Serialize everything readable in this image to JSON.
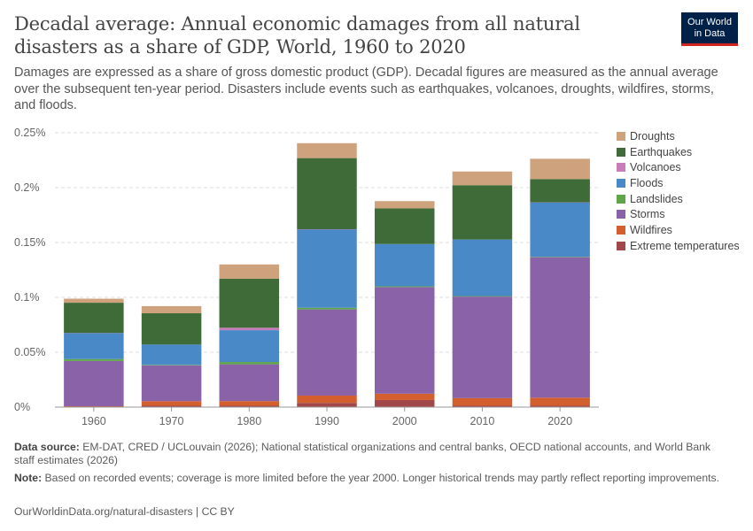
{
  "header": {
    "title": "Decadal average: Annual economic damages from all natural disasters as a share of GDP, World, 1960 to 2020",
    "subtitle": "Damages are expressed as a share of gross domestic product (GDP). Decadal figures are measured as the annual average over the subsequent ten-year period. Disasters include events such as earthquakes, volcanoes, droughts, wildfires, storms, and floods.",
    "logo_line1": "Our World",
    "logo_line2": "in Data"
  },
  "footer": {
    "source_label": "Data source:",
    "source_text": "EM-DAT, CRED / UCLouvain (2026); National statistical organizations and central banks, OECD national accounts, and World Bank staff estimates (2026)",
    "note_label": "Note:",
    "note_text": "Based on recorded events; coverage is more limited before the year 2000. Longer historical trends may partly reflect reporting improvements.",
    "url_text": "OurWorldinData.org/natural-disasters | CC BY"
  },
  "chart_data": {
    "type": "bar",
    "stacked": true,
    "categories": [
      "1960",
      "1970",
      "1980",
      "1990",
      "2000",
      "2010",
      "2020"
    ],
    "y_ticks": [
      {
        "value": 0,
        "label": "0%"
      },
      {
        "value": 0.05,
        "label": "0.05%"
      },
      {
        "value": 0.1,
        "label": "0.1%"
      },
      {
        "value": 0.15,
        "label": "0.15%"
      },
      {
        "value": 0.2,
        "label": "0.2%"
      },
      {
        "value": 0.25,
        "label": "0.25%"
      }
    ],
    "ylim": [
      0,
      0.25
    ],
    "grid": true,
    "legend_position": "right",
    "series": [
      {
        "name": "Extreme temperatures",
        "color": "#a2484b",
        "values": [
          0.0004,
          0.0012,
          0.0012,
          0.0038,
          0.0065,
          0.0012,
          0.0012
        ]
      },
      {
        "name": "Wildfires",
        "color": "#d35f2e",
        "values": [
          0.0004,
          0.0042,
          0.0043,
          0.0067,
          0.0057,
          0.007,
          0.0074
        ]
      },
      {
        "name": "Storms",
        "color": "#8a62a8",
        "values": [
          0.0412,
          0.0326,
          0.0335,
          0.0785,
          0.0972,
          0.0925,
          0.128
        ]
      },
      {
        "name": "Landslides",
        "color": "#60a54b",
        "values": [
          0.0018,
          0.0005,
          0.0021,
          0.0015,
          0.0007,
          0.0005,
          0.0004
        ]
      },
      {
        "name": "Floods",
        "color": "#4a89c8",
        "values": [
          0.0237,
          0.0185,
          0.029,
          0.0715,
          0.0385,
          0.0515,
          0.0495
        ]
      },
      {
        "name": "Volcanoes",
        "color": "#c77dba",
        "values": [
          0.0001,
          0.0,
          0.0022,
          0.0001,
          0.0,
          0.0,
          0.0001
        ]
      },
      {
        "name": "Earthquakes",
        "color": "#3f6b38",
        "values": [
          0.0275,
          0.0285,
          0.0447,
          0.0648,
          0.0325,
          0.0495,
          0.0212
        ]
      },
      {
        "name": "Droughts",
        "color": "#cda27c",
        "values": [
          0.0037,
          0.0065,
          0.013,
          0.0136,
          0.0066,
          0.0125,
          0.0185
        ]
      }
    ]
  }
}
